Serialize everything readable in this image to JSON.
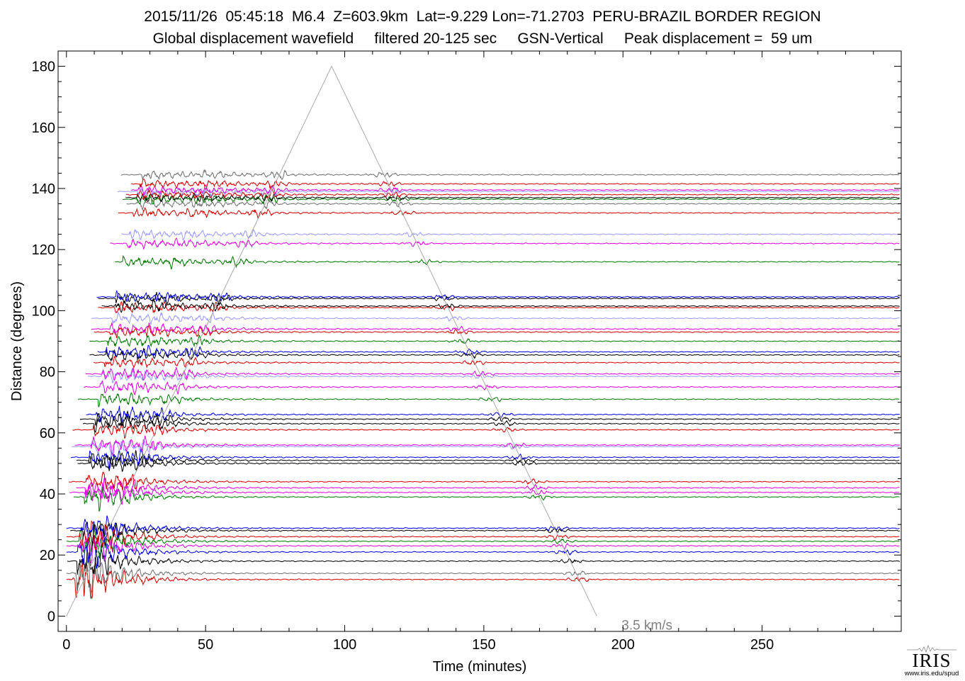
{
  "header": {
    "line1": "2015/11/26  05:45:18  M6.4  Z=603.9km  Lat=-9.229 Lon=-71.2703  PERU-BRAZIL BORDER REGION",
    "line2": "Global displacement wavefield     filtered 20-125 sec     GSN-Vertical     Peak displacement =  59 um"
  },
  "logo": {
    "name": "IRIS",
    "url": "www.iris.edu/spud"
  },
  "chart_data": {
    "type": "line",
    "title": "2015/11/26  05:45:18  M6.4  Z=603.9km  Lat=-9.229 Lon=-71.2703  PERU-BRAZIL BORDER REGION",
    "subtitle": "Global displacement wavefield     filtered 20-125 sec     GSN-Vertical     Peak displacement =  59 um",
    "xlabel": "Time (minutes)",
    "ylabel": "Distance (degrees)",
    "xlim": [
      -3,
      300
    ],
    "ylim": [
      -5,
      185
    ],
    "x_ticks": [
      0,
      50,
      100,
      150,
      200,
      250
    ],
    "y_ticks": [
      0,
      20,
      40,
      60,
      80,
      100,
      120,
      140,
      160,
      180
    ],
    "grid": false,
    "reference_line": {
      "label": "3.5 km/s",
      "color": "#aaaaaa",
      "x": [
        0,
        95.3,
        190.6
      ],
      "y": [
        0,
        180,
        0
      ]
    },
    "trace_colors": {
      "red": "#d40000",
      "black": "#000000",
      "blue": "#0000e0",
      "green": "#007a00",
      "magenta": "#e000e0",
      "lightblue": "#9a9aff",
      "gray": "#707070"
    },
    "traces": [
      {
        "distance": 12,
        "color": "red"
      },
      {
        "distance": 14,
        "color": "gray"
      },
      {
        "distance": 18,
        "color": "black"
      },
      {
        "distance": 21,
        "color": "blue"
      },
      {
        "distance": 23,
        "color": "magenta"
      },
      {
        "distance": 24.5,
        "color": "green"
      },
      {
        "distance": 26,
        "color": "red"
      },
      {
        "distance": 28,
        "color": "black"
      },
      {
        "distance": 28.8,
        "color": "blue"
      },
      {
        "distance": 39,
        "color": "green"
      },
      {
        "distance": 40.5,
        "color": "magenta"
      },
      {
        "distance": 42,
        "color": "magenta"
      },
      {
        "distance": 44,
        "color": "red"
      },
      {
        "distance": 50,
        "color": "black"
      },
      {
        "distance": 51,
        "color": "black"
      },
      {
        "distance": 52,
        "color": "blue"
      },
      {
        "distance": 55.5,
        "color": "lightblue"
      },
      {
        "distance": 56,
        "color": "magenta"
      },
      {
        "distance": 61,
        "color": "red"
      },
      {
        "distance": 63,
        "color": "black"
      },
      {
        "distance": 64.5,
        "color": "black"
      },
      {
        "distance": 66,
        "color": "blue"
      },
      {
        "distance": 71,
        "color": "green"
      },
      {
        "distance": 75,
        "color": "magenta"
      },
      {
        "distance": 78.5,
        "color": "lightblue"
      },
      {
        "distance": 79.3,
        "color": "magenta"
      },
      {
        "distance": 83,
        "color": "red"
      },
      {
        "distance": 85.5,
        "color": "black"
      },
      {
        "distance": 86.5,
        "color": "blue"
      },
      {
        "distance": 90,
        "color": "green"
      },
      {
        "distance": 93,
        "color": "red"
      },
      {
        "distance": 94,
        "color": "magenta"
      },
      {
        "distance": 97.5,
        "color": "lightblue"
      },
      {
        "distance": 101,
        "color": "red"
      },
      {
        "distance": 101.5,
        "color": "black"
      },
      {
        "distance": 104,
        "color": "black"
      },
      {
        "distance": 104.5,
        "color": "blue"
      },
      {
        "distance": 116,
        "color": "green"
      },
      {
        "distance": 122,
        "color": "magenta"
      },
      {
        "distance": 125,
        "color": "lightblue"
      },
      {
        "distance": 132,
        "color": "red"
      },
      {
        "distance": 135,
        "color": "gray"
      },
      {
        "distance": 136.5,
        "color": "green"
      },
      {
        "distance": 137,
        "color": "black"
      },
      {
        "distance": 138,
        "color": "red"
      },
      {
        "distance": 139,
        "color": "lightblue"
      },
      {
        "distance": 139.5,
        "color": "magenta"
      },
      {
        "distance": 141.5,
        "color": "red"
      },
      {
        "distance": 144.5,
        "color": "gray"
      }
    ]
  }
}
